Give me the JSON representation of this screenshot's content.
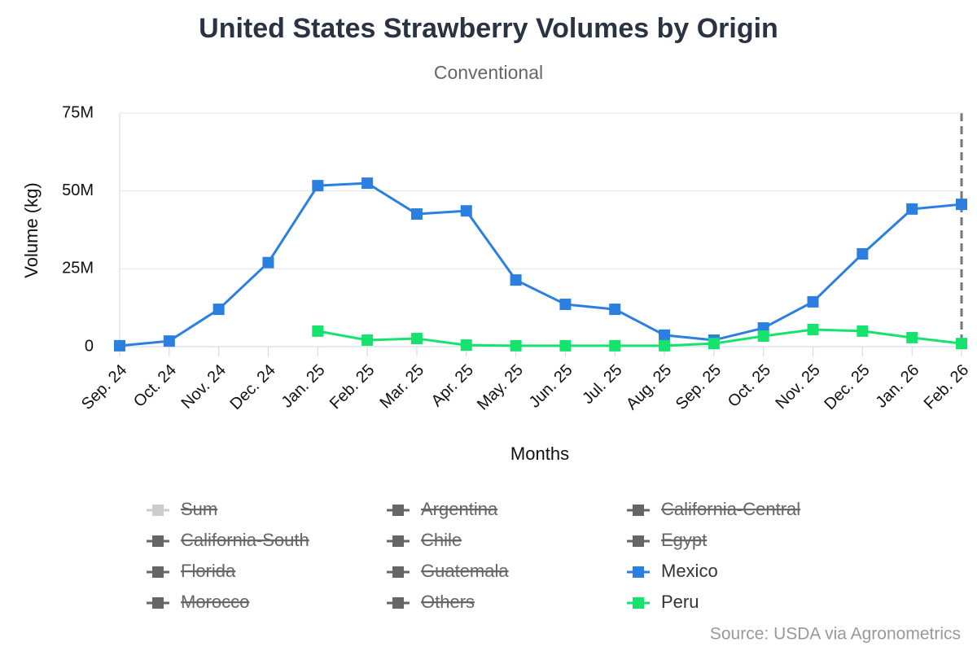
{
  "chart_data": {
    "type": "line",
    "title": "United States Strawberry Volumes by Origin",
    "subtitle": "Conventional",
    "x_label": "Months",
    "y_label": "Volume (kg)",
    "credits": "Source: USDA via Agronometrics",
    "categories": [
      "Sep. 24",
      "Oct. 24",
      "Nov. 24",
      "Dec. 24",
      "Jan. 25",
      "Feb. 25",
      "Mar. 25",
      "Apr. 25",
      "May. 25",
      "Jun. 25",
      "Jul. 25",
      "Aug. 25",
      "Sep. 25",
      "Oct. 25",
      "Nov. 25",
      "Dec. 25",
      "Jan. 26",
      "Feb. 26"
    ],
    "ylim": [
      0,
      75000000
    ],
    "yticks": [
      0,
      {
        "value": 25000000,
        "label": "25M"
      },
      {
        "value": 50000000,
        "label": "50M"
      },
      {
        "value": 75000000,
        "label": "75M"
      }
    ],
    "grid": true,
    "series": [
      {
        "name": "Sum",
        "color": "#cccccc",
        "visible": false
      },
      {
        "name": "Argentina",
        "color": "#666666",
        "visible": false
      },
      {
        "name": "California-Central",
        "color": "#666666",
        "visible": false
      },
      {
        "name": "California-South",
        "color": "#666666",
        "visible": false
      },
      {
        "name": "Chile",
        "color": "#666666",
        "visible": false
      },
      {
        "name": "Egypt",
        "color": "#666666",
        "visible": false
      },
      {
        "name": "Florida",
        "color": "#666666",
        "visible": false
      },
      {
        "name": "Guatemala",
        "color": "#666666",
        "visible": false
      },
      {
        "name": "Mexico",
        "color": "#2a7fe0",
        "visible": true,
        "values": [
          300000,
          1800000,
          12000000,
          27000000,
          51700000,
          52500000,
          42600000,
          43600000,
          21400000,
          13600000,
          12000000,
          3700000,
          2100000,
          6000000,
          14400000,
          29800000,
          44200000,
          45700000
        ]
      },
      {
        "name": "Morocco",
        "color": "#666666",
        "visible": false
      },
      {
        "name": "Others",
        "color": "#666666",
        "visible": false
      },
      {
        "name": "Peru",
        "color": "#16e36e",
        "visible": true,
        "values": [
          null,
          null,
          null,
          null,
          5000000,
          2100000,
          2600000,
          500000,
          300000,
          300000,
          300000,
          300000,
          1000000,
          3400000,
          5500000,
          5000000,
          2900000,
          1000000
        ]
      }
    ]
  }
}
